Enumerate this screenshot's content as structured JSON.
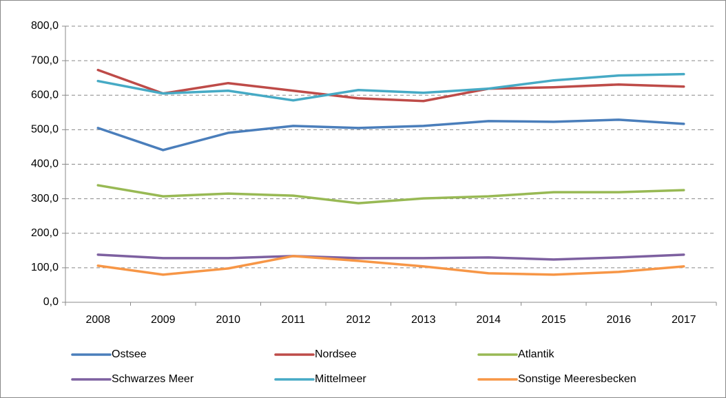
{
  "chart_data": {
    "type": "line",
    "categories": [
      "2008",
      "2009",
      "2010",
      "2011",
      "2012",
      "2013",
      "2014",
      "2015",
      "2016",
      "2017"
    ],
    "series": [
      {
        "name": "Ostsee",
        "color": "#4a7ebb",
        "values": [
          505,
          441,
          491,
          511,
          505,
          511,
          525,
          523,
          529,
          517
        ]
      },
      {
        "name": "Nordsee",
        "color": "#be4b48",
        "values": [
          673,
          605,
          635,
          613,
          591,
          583,
          619,
          623,
          631,
          625
        ]
      },
      {
        "name": "Atlantik",
        "color": "#98b954",
        "values": [
          339,
          307,
          315,
          309,
          287,
          301,
          307,
          319,
          319,
          325
        ]
      },
      {
        "name": "Schwarzes Meer",
        "color": "#7d60a0",
        "values": [
          138,
          128,
          128,
          134,
          128,
          128,
          130,
          124,
          130,
          138
        ]
      },
      {
        "name": "Mittelmeer",
        "color": "#46aac5",
        "values": [
          641,
          605,
          613,
          585,
          615,
          607,
          619,
          643,
          657,
          661
        ]
      },
      {
        "name": "Sonstige Meeresbecken",
        "color": "#f79646",
        "values": [
          106,
          80,
          98,
          134,
          120,
          104,
          84,
          80,
          88,
          104
        ]
      }
    ],
    "ylim": [
      0,
      800
    ],
    "yticks": [
      {
        "value": 0,
        "label": "0,0"
      },
      {
        "value": 100,
        "label": "100,0"
      },
      {
        "value": 200,
        "label": "200,0"
      },
      {
        "value": 300,
        "label": "300,0"
      },
      {
        "value": 400,
        "label": "400,0"
      },
      {
        "value": 500,
        "label": "500,0"
      },
      {
        "value": 600,
        "label": "600,0"
      },
      {
        "value": 700,
        "label": "700,0"
      },
      {
        "value": 800,
        "label": "800,0"
      }
    ],
    "grid": true,
    "legend": "bottom"
  }
}
